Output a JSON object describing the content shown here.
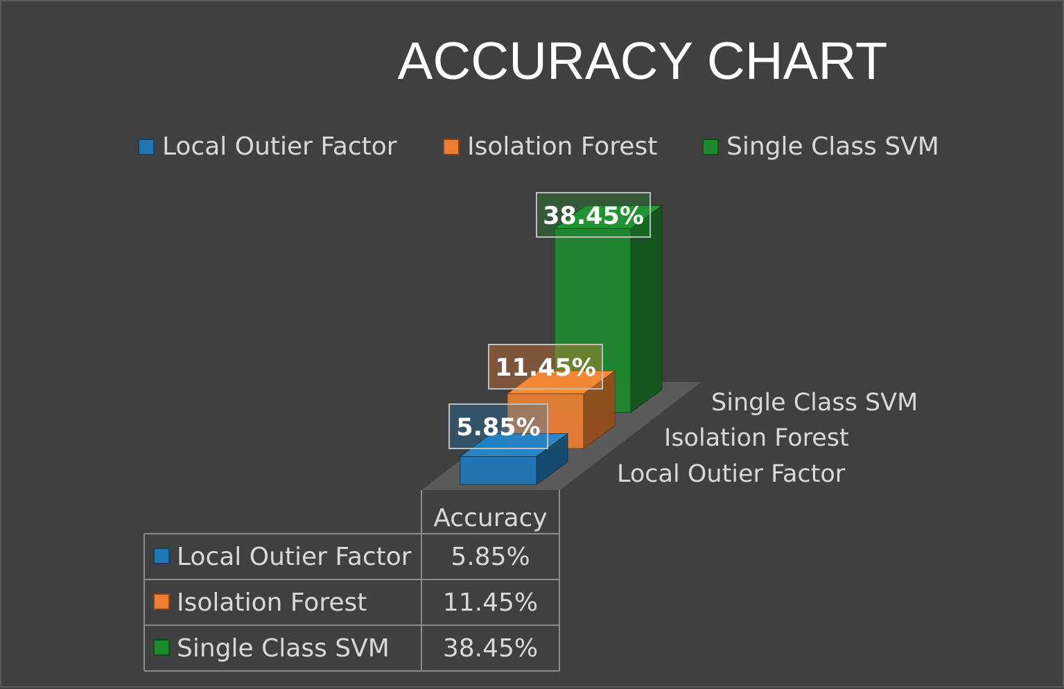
{
  "chart_data": {
    "type": "bar",
    "title": "ACCURACY CHART",
    "categories": [
      "Accuracy"
    ],
    "series": [
      {
        "name": "Local Outier Factor",
        "values": [
          5.85
        ],
        "label": "5.85%",
        "color": "#1f77b4"
      },
      {
        "name": "Isolation Forest",
        "values": [
          11.45
        ],
        "label": "11.45%",
        "color": "#ed7d31"
      },
      {
        "name": "Single Class SVM",
        "values": [
          38.45
        ],
        "label": "38.45%",
        "color": "#1e8a2e"
      }
    ],
    "depth_labels": [
      "Single Class SVM",
      "Isolation Forest",
      "Local Outier Factor"
    ],
    "legend_position": "top",
    "data_table": {
      "header": "Accuracy",
      "rows": [
        {
          "name": "Local Outier Factor",
          "value": "5.85%"
        },
        {
          "name": "Isolation Forest",
          "value": "11.45%"
        },
        {
          "name": "Single Class SVM",
          "value": "38.45%"
        }
      ]
    },
    "grid": false
  }
}
